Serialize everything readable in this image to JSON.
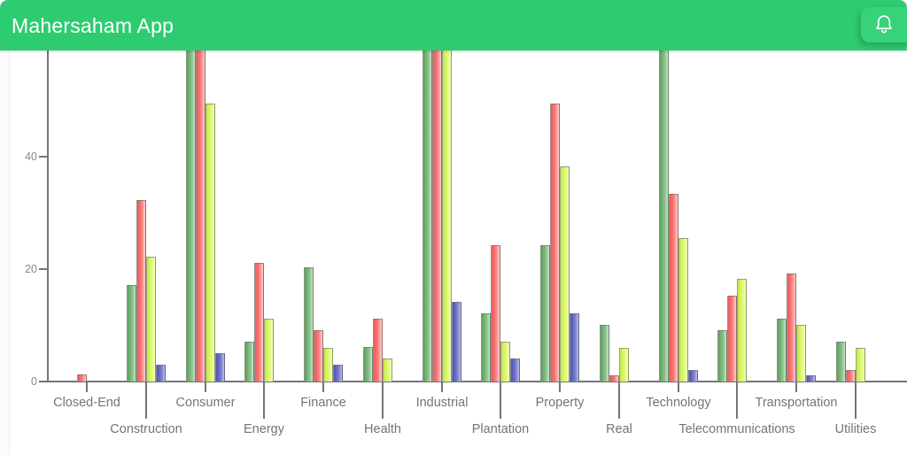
{
  "header": {
    "title": "Mahersaham App",
    "bg_color": "#2ecc71",
    "bell_button_color": "#38d27b"
  },
  "chart_data": {
    "type": "bar",
    "title": "",
    "xlabel": "",
    "ylabel": "",
    "categories": [
      "Closed-End",
      "Construction",
      "Consumer",
      "Energy",
      "Finance",
      "Health",
      "Industrial",
      "Plantation",
      "Property",
      "Real",
      "Technology",
      "Telecommunications",
      "Transportation",
      "Utilities"
    ],
    "series": [
      {
        "name": "green",
        "color": "#7ab77a",
        "values": [
          0,
          17.2,
          62,
          7.1,
          20.3,
          6.1,
          62,
          12.1,
          24.2,
          10.1,
          62,
          9.1,
          11.2,
          7.1
        ]
      },
      {
        "name": "red",
        "color": "#fa7070",
        "values": [
          1.2,
          32.3,
          62,
          21.1,
          9.1,
          11.2,
          62,
          24.2,
          49.4,
          1.1,
          33.4,
          15.3,
          19.2,
          2.0
        ]
      },
      {
        "name": "yellow-green",
        "color": "#d8f764",
        "values": [
          0,
          22.2,
          49.4,
          11.2,
          6.0,
          4.1,
          62,
          7.1,
          38.2,
          6.0,
          25.4,
          18.3,
          10.0,
          6.0
        ]
      },
      {
        "name": "blue",
        "color": "#6b6dc9",
        "values": [
          0,
          3.0,
          5.0,
          0,
          3.0,
          0,
          14.2,
          4.1,
          12.1,
          0,
          2.0,
          0,
          1.1,
          0
        ]
      }
    ],
    "clipped_note": "Bars listed as 62 exceed the visible plot top (~58.7) and are cut off by the header",
    "clipped_bars": {
      "green": [
        2,
        6,
        10
      ],
      "red": [
        2,
        6
      ],
      "yellow-green": [
        6
      ]
    },
    "y_ticks": [
      0,
      20,
      40
    ],
    "ylim_visible": [
      0,
      58.7
    ],
    "grid": false,
    "legend": false,
    "label_rows": "category labels alternate between upper and lower row"
  }
}
